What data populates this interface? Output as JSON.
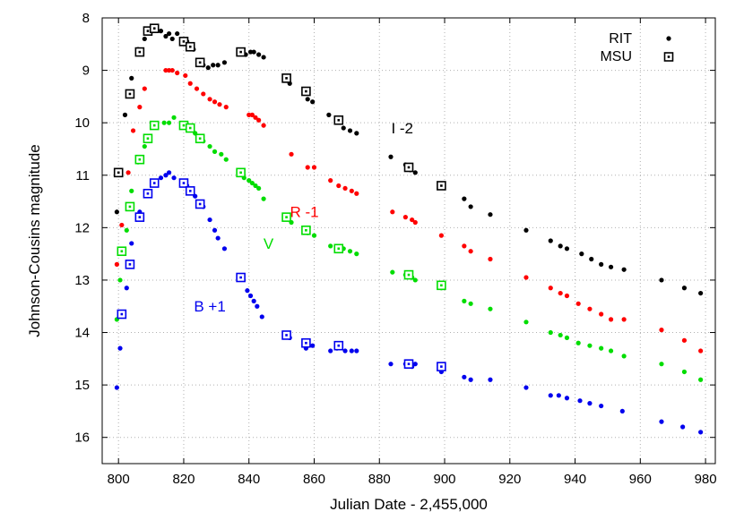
{
  "chart_data": {
    "type": "scatter",
    "title": "",
    "xlabel": "Julian Date - 2,455,000",
    "ylabel": "Johnson-Cousins magnitude",
    "xlim": [
      795,
      983
    ],
    "ylim": [
      16.5,
      8
    ],
    "y_inverted": true,
    "x_ticks": [
      800,
      820,
      840,
      860,
      880,
      900,
      920,
      940,
      960,
      980
    ],
    "y_ticks": [
      8,
      9,
      10,
      11,
      12,
      13,
      14,
      15,
      16
    ],
    "grid": true,
    "legend_position": "top-right",
    "legend": [
      {
        "label": "RIT",
        "marker": "dot"
      },
      {
        "label": "MSU",
        "marker": "square"
      }
    ],
    "band_labels": [
      {
        "text": "I -2",
        "x": 887,
        "y": 10.2,
        "color": "#000000"
      },
      {
        "text": "R -1",
        "x": 857,
        "y": 11.8,
        "color": "#ff0000"
      },
      {
        "text": "V",
        "x": 846,
        "y": 12.4,
        "color": "#00dd00"
      },
      {
        "text": "B +1",
        "x": 828,
        "y": 13.6,
        "color": "#0000ee"
      }
    ],
    "series": [
      {
        "name": "I -2",
        "source": "RIT",
        "color": "#000000",
        "x": [
          799.5,
          802,
          804,
          806,
          808,
          809.5,
          811,
          813,
          814.5,
          815.5,
          816.5,
          818,
          821,
          822,
          823,
          826,
          827.5,
          829,
          830.5,
          832.5,
          837.5,
          839,
          840.5,
          841.5,
          843,
          844.5,
          852.5,
          858,
          859.5,
          864.5,
          867,
          869,
          871,
          873,
          883.5,
          888,
          889.5,
          891,
          899,
          906,
          908,
          914,
          925,
          932.5,
          935.5,
          937.5,
          942,
          945,
          948,
          951,
          955,
          966.5,
          973.5,
          978.5
        ],
        "y": [
          11.7,
          9.85,
          9.15,
          8.6,
          8.4,
          8.25,
          8.2,
          8.25,
          8.35,
          8.3,
          8.4,
          8.3,
          8.45,
          8.55,
          8.6,
          8.9,
          8.95,
          8.9,
          8.9,
          8.85,
          8.65,
          8.7,
          8.65,
          8.65,
          8.7,
          8.75,
          9.25,
          9.55,
          9.6,
          9.85,
          9.95,
          10.1,
          10.15,
          10.2,
          10.65,
          10.8,
          10.9,
          10.95,
          11.2,
          11.45,
          11.6,
          11.75,
          12.05,
          12.25,
          12.35,
          12.4,
          12.5,
          12.6,
          12.7,
          12.75,
          12.8,
          13.0,
          13.15,
          13.25
        ]
      },
      {
        "name": "R -1",
        "source": "RIT",
        "color": "#ff0000",
        "x": [
          799.5,
          801,
          803,
          804.5,
          806.5,
          808,
          814.5,
          815.5,
          816.5,
          818,
          820.5,
          822,
          824,
          826,
          828,
          829.5,
          831,
          833,
          840,
          841,
          842,
          843,
          844.5,
          853,
          858,
          860,
          865,
          867.5,
          869.5,
          871.5,
          873,
          884,
          888,
          890,
          891,
          899,
          906,
          908,
          914,
          925,
          932.5,
          935.5,
          937.5,
          941,
          944.5,
          948,
          951,
          955,
          966.5,
          973.5,
          978.5
        ],
        "y": [
          12.7,
          11.95,
          10.95,
          10.15,
          9.7,
          9.35,
          9.0,
          9.0,
          9.0,
          9.05,
          9.1,
          9.25,
          9.35,
          9.45,
          9.55,
          9.6,
          9.65,
          9.7,
          9.85,
          9.85,
          9.9,
          9.95,
          10.05,
          10.6,
          10.85,
          10.85,
          11.1,
          11.2,
          11.25,
          11.3,
          11.35,
          11.7,
          11.8,
          11.85,
          11.9,
          12.15,
          12.35,
          12.45,
          12.6,
          12.95,
          13.15,
          13.25,
          13.3,
          13.45,
          13.55,
          13.65,
          13.75,
          13.75,
          13.95,
          14.15,
          14.35
        ]
      },
      {
        "name": "V",
        "source": "RIT",
        "color": "#00dd00",
        "x": [
          799.5,
          800.5,
          802.5,
          804,
          806,
          808,
          814,
          815.5,
          817,
          819.5,
          821,
          823.5,
          826,
          828,
          829.5,
          831.5,
          833,
          838.5,
          840,
          841,
          842,
          843,
          844.5,
          853,
          858,
          860,
          865,
          869,
          871,
          873,
          884,
          888,
          890,
          891,
          899,
          906,
          908,
          914,
          925,
          932.5,
          935.5,
          937.5,
          941,
          944.5,
          948,
          951,
          955,
          966.5,
          973.5,
          978.5
        ],
        "y": [
          13.75,
          13.0,
          12.05,
          11.3,
          10.75,
          10.45,
          10.0,
          10.0,
          9.9,
          10.05,
          10.1,
          10.2,
          10.35,
          10.45,
          10.55,
          10.6,
          10.7,
          11.05,
          11.1,
          11.15,
          11.2,
          11.25,
          11.45,
          11.9,
          12.1,
          12.15,
          12.35,
          12.4,
          12.45,
          12.5,
          12.85,
          12.9,
          12.95,
          13.0,
          13.15,
          13.4,
          13.45,
          13.55,
          13.8,
          14.0,
          14.05,
          14.1,
          14.2,
          14.25,
          14.3,
          14.35,
          14.45,
          14.6,
          14.75,
          14.9
        ]
      },
      {
        "name": "B +1",
        "source": "RIT",
        "color": "#0000ee",
        "x": [
          799.5,
          800.5,
          802.5,
          804,
          806.5,
          809,
          813,
          814.5,
          815.5,
          817,
          821,
          822.5,
          823.5,
          826,
          828,
          829.5,
          830.5,
          832.5,
          839.5,
          840.5,
          841.5,
          842.5,
          844,
          852.5,
          857.5,
          859.5,
          865,
          867,
          869.5,
          871.5,
          873,
          883.5,
          888,
          890,
          891,
          899,
          906,
          908,
          914,
          925,
          932.5,
          935,
          937.5,
          941.5,
          944.5,
          948,
          954.5,
          966.5,
          973,
          978.5
        ],
        "y": [
          15.05,
          14.3,
          13.15,
          12.3,
          11.7,
          11.35,
          11.05,
          11.0,
          10.95,
          11.05,
          11.2,
          11.3,
          11.4,
          11.6,
          11.85,
          12.05,
          12.2,
          12.4,
          13.2,
          13.3,
          13.4,
          13.5,
          13.7,
          14.1,
          14.3,
          14.25,
          14.35,
          14.3,
          14.35,
          14.35,
          14.35,
          14.6,
          14.6,
          14.65,
          14.6,
          14.75,
          14.85,
          14.9,
          14.9,
          15.05,
          15.2,
          15.2,
          15.25,
          15.3,
          15.35,
          15.4,
          15.5,
          15.7,
          15.8,
          15.9
        ]
      },
      {
        "name": "I -2",
        "source": "MSU",
        "color": "#000000",
        "x": [
          800,
          803.5,
          806.5,
          809,
          811,
          820,
          822,
          825,
          837.5,
          851.5,
          857.5,
          867.5,
          889,
          899
        ],
        "y": [
          10.95,
          9.45,
          8.65,
          8.25,
          8.2,
          8.45,
          8.55,
          8.85,
          8.65,
          9.15,
          9.4,
          9.95,
          10.85,
          11.2
        ]
      },
      {
        "name": "V",
        "source": "MSU",
        "color": "#00dd00",
        "x": [
          801,
          803.5,
          806.5,
          809,
          811,
          820,
          822,
          825,
          837.5,
          851.5,
          857.5,
          867.5,
          889,
          899
        ],
        "y": [
          12.45,
          11.6,
          10.7,
          10.3,
          10.05,
          10.05,
          10.1,
          10.3,
          10.95,
          11.8,
          12.05,
          12.4,
          12.9,
          13.1
        ]
      },
      {
        "name": "B +1",
        "source": "MSU",
        "color": "#0000ee",
        "x": [
          801,
          803.5,
          806.5,
          809,
          811,
          820,
          822,
          825,
          837.5,
          851.5,
          857.5,
          867.5,
          889,
          899
        ],
        "y": [
          13.65,
          12.7,
          11.8,
          11.35,
          11.15,
          11.15,
          11.3,
          11.55,
          12.95,
          14.05,
          14.2,
          14.25,
          14.6,
          14.65
        ]
      }
    ]
  }
}
